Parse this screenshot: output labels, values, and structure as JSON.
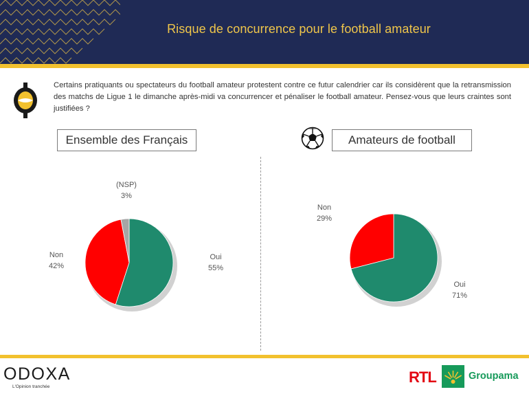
{
  "header": {
    "title": "Risque de concurrence pour le football amateur"
  },
  "question": {
    "text": "Certains pratiquants ou spectateurs du football amateur protestent contre ce futur calendrier car ils considèrent que la retransmission des matchs de Ligue 1 le dimanche après-midi va concurrencer et pénaliser le football amateur. Pensez-vous que leurs craintes sont justifiées ?"
  },
  "colors": {
    "navy": "#1f2a55",
    "gold": "#f2c12e",
    "oui": "#1f8a6d",
    "non": "#ff0000",
    "nsp": "#a6a6a6"
  },
  "chart_data": [
    {
      "type": "pie",
      "title": "Ensemble des Français",
      "categories": [
        "Oui",
        "Non",
        "(NSP)"
      ],
      "values": [
        55,
        42,
        3
      ],
      "labels": [
        "55%",
        "42%",
        "3%"
      ]
    },
    {
      "type": "pie",
      "title": "Amateurs de football",
      "categories": [
        "Oui",
        "Non"
      ],
      "values": [
        71,
        29
      ],
      "labels": [
        "71%",
        "29%"
      ]
    }
  ],
  "footer": {
    "brand": "ODOXA",
    "tagline": "L'Opinion tranchée",
    "partner1": "RTL",
    "partner2": "Groupama"
  }
}
